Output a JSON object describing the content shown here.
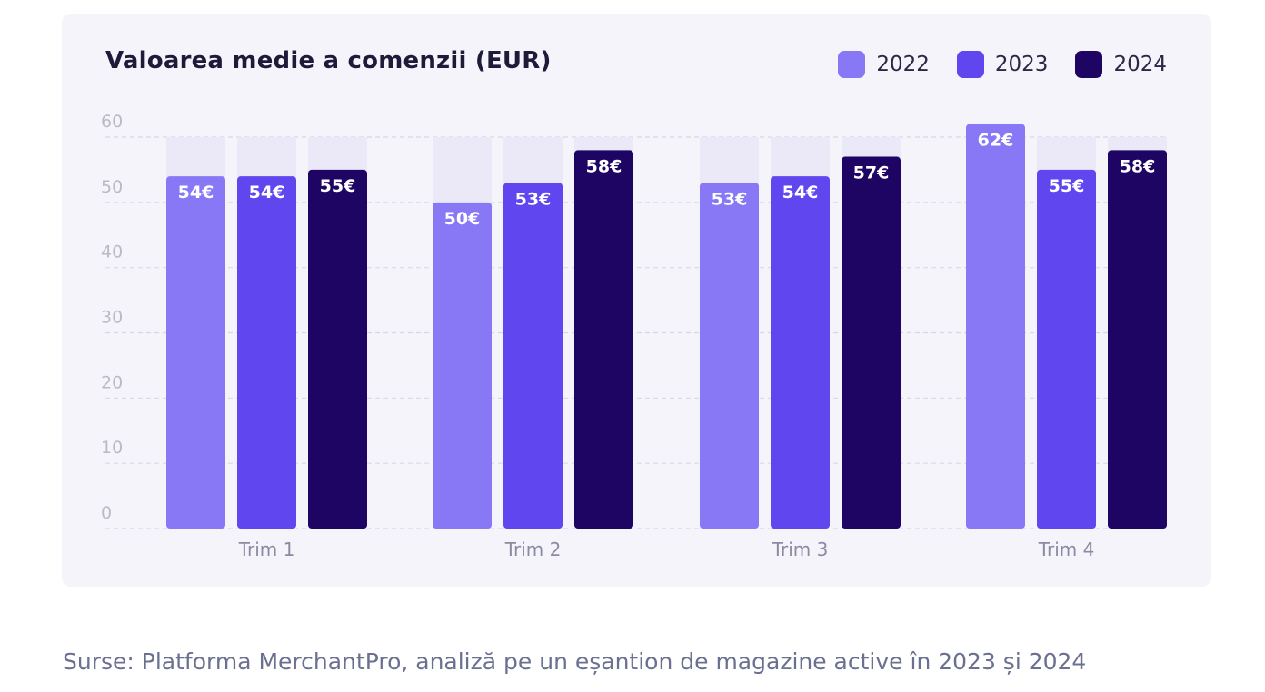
{
  "chart_data": {
    "type": "bar",
    "title": "Valoarea medie a comenzii (EUR)",
    "categories": [
      "Trim 1",
      "Trim 2",
      "Trim 3",
      "Trim 4"
    ],
    "series": [
      {
        "name": "2022",
        "color": "#8878f5",
        "values": [
          54,
          50,
          53,
          62
        ],
        "labels": [
          "54€",
          "50€",
          "53€",
          "62€"
        ]
      },
      {
        "name": "2023",
        "color": "#5f46ee",
        "values": [
          54,
          53,
          54,
          55
        ],
        "labels": [
          "54€",
          "53€",
          "54€",
          "55€"
        ]
      },
      {
        "name": "2024",
        "color": "#1f0563",
        "values": [
          55,
          58,
          57,
          58
        ],
        "labels": [
          "55€",
          "58€",
          "57€",
          "58€"
        ]
      }
    ],
    "ylim": [
      0,
      60
    ],
    "yticks": [
      0,
      10,
      20,
      30,
      40,
      50,
      60
    ],
    "grid": true,
    "legend_position": "top-right",
    "xlabel": "",
    "ylabel": ""
  },
  "footer": "Surse: Platforma MerchantPro, analiză pe un eșantion de magazine active în 2023 și 2024",
  "colors": {
    "card_background": "#f5f4fb",
    "background_bar": "#ebe9f7",
    "grid": "#d8d7e3",
    "tick_text": "#b9bac7",
    "category_text": "#8a8ba1"
  }
}
